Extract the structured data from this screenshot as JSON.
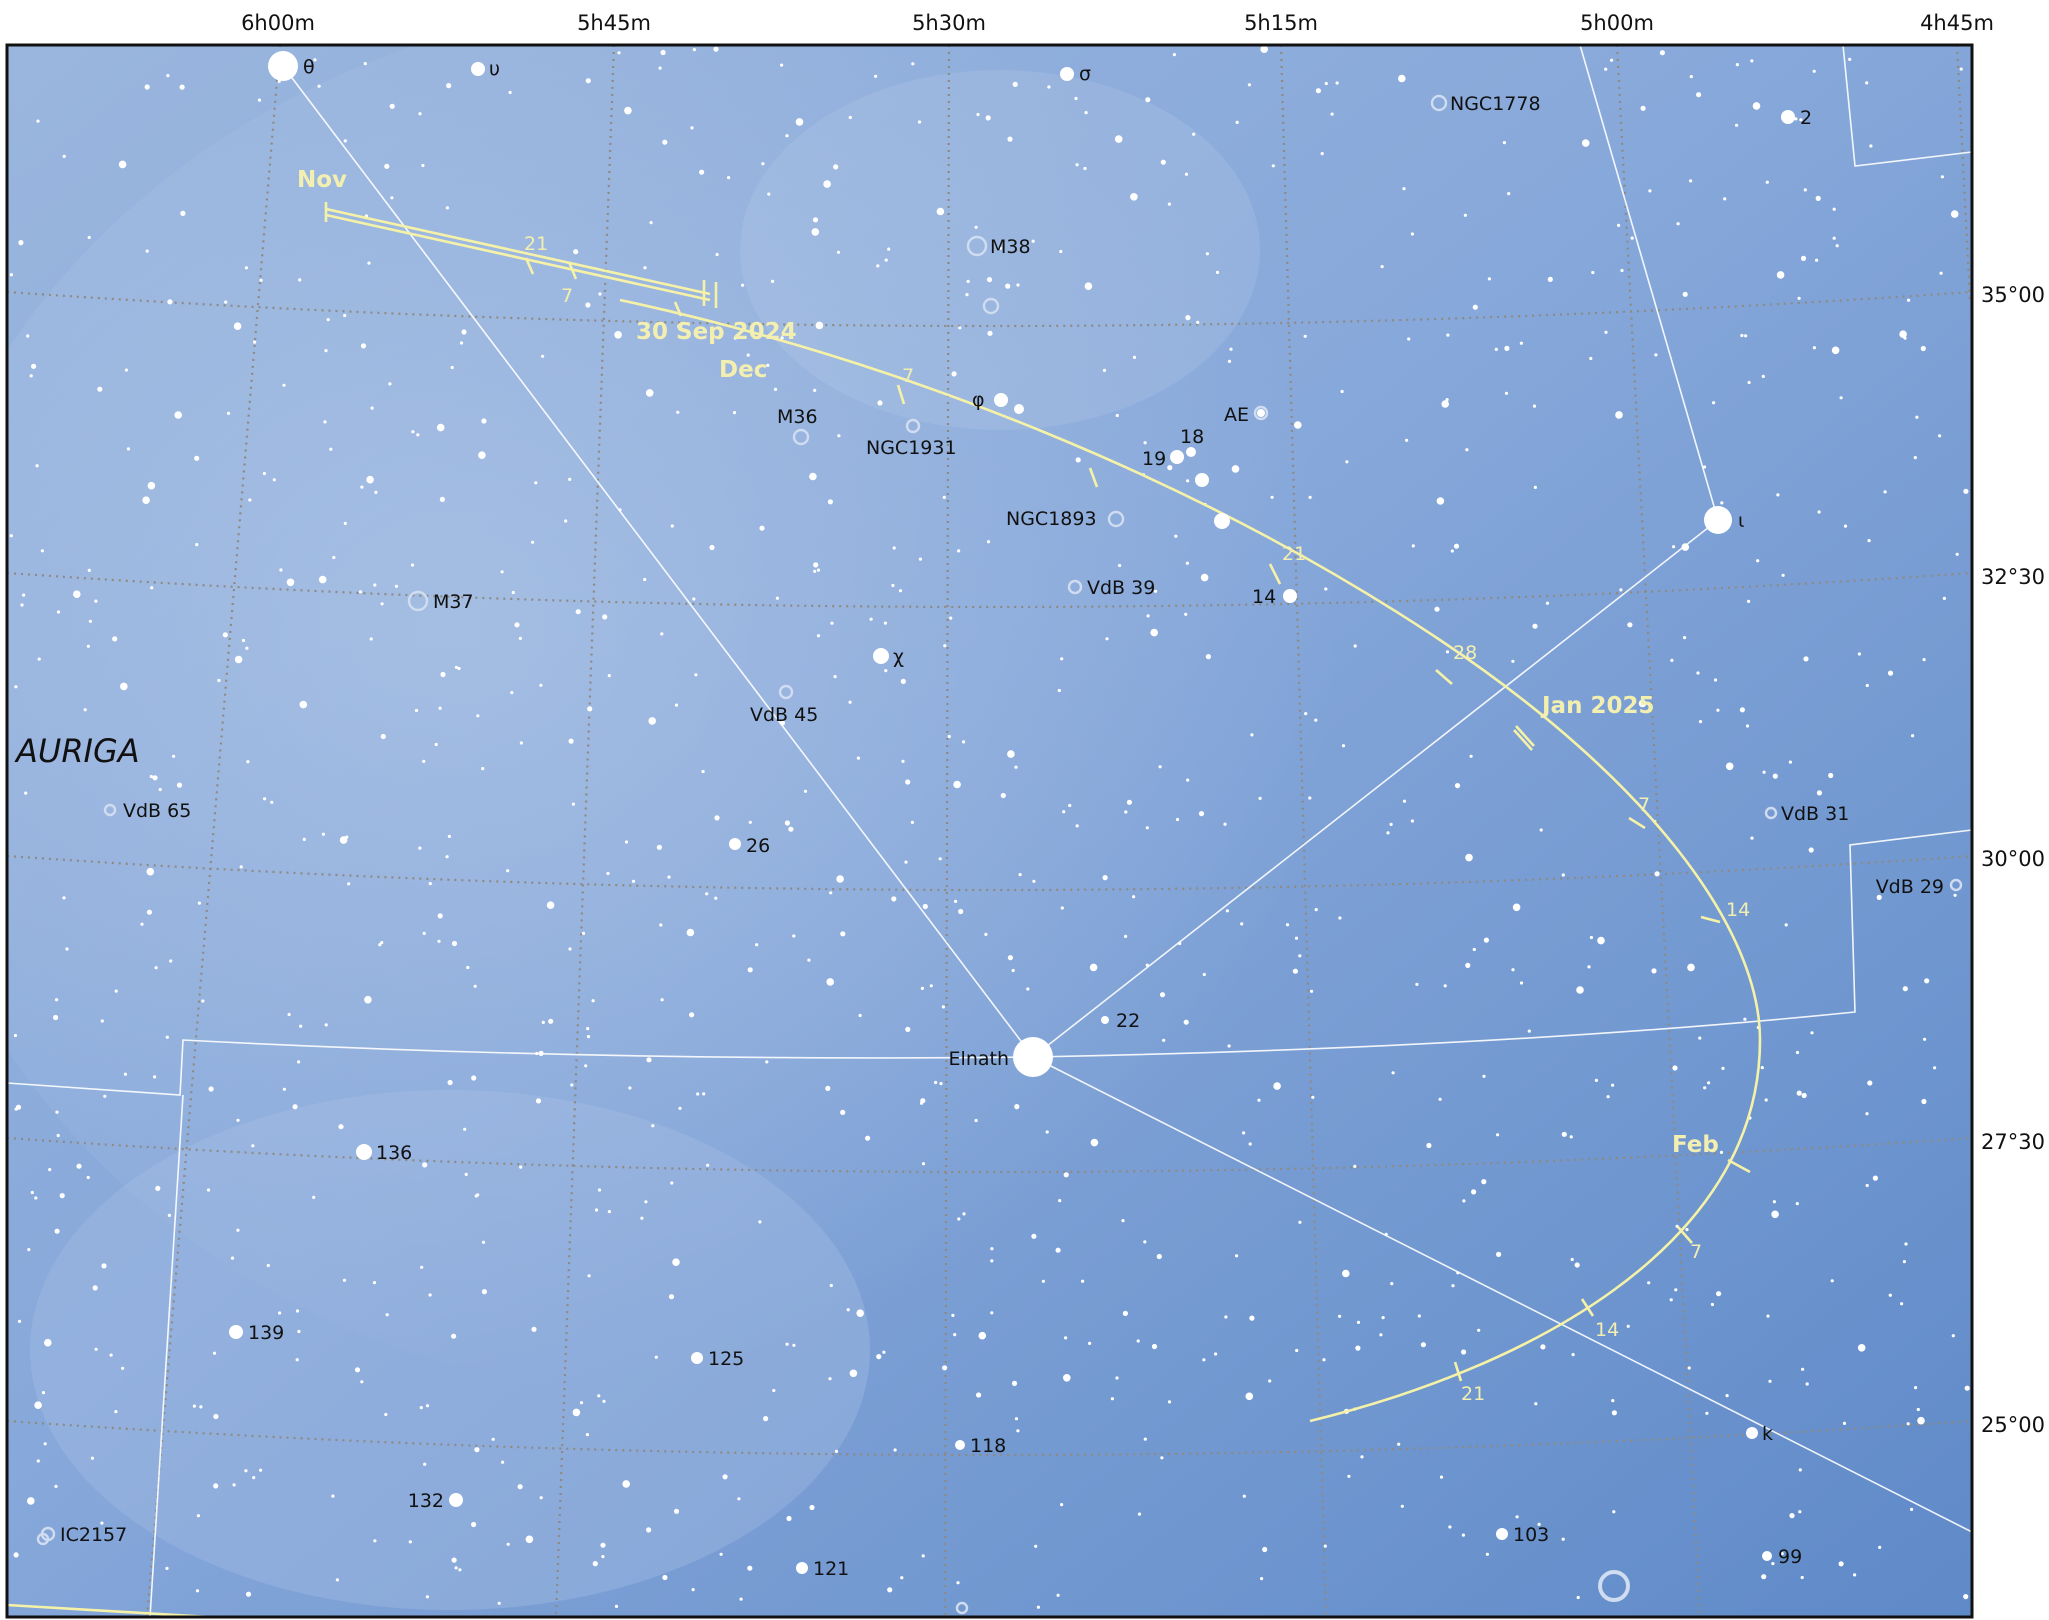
{
  "chart": {
    "constellation": "AURIGA",
    "colors": {
      "sky_light": "#9db8df",
      "sky_mid": "#7fa3d6",
      "sky_dark": "#5f8ac9",
      "grid": "#8e8a82",
      "lines": "#ffffff",
      "comet_path": "#f5f2a8",
      "frame": "#111111"
    },
    "ra_labels": [
      "6h00m",
      "5h45m",
      "5h30m",
      "5h15m",
      "5h00m",
      "4h45m"
    ],
    "dec_labels": [
      "35°00",
      "32°30",
      "30°00",
      "27°30",
      "25°00"
    ],
    "stars_named": [
      {
        "label": "θ",
        "icon": "bright-star-icon"
      },
      {
        "label": "υ",
        "icon": "star-icon"
      },
      {
        "label": "σ",
        "icon": "star-icon"
      },
      {
        "label": "2",
        "icon": "star-icon"
      },
      {
        "label": "φ",
        "icon": "star-icon"
      },
      {
        "label": "18",
        "icon": "star-icon"
      },
      {
        "label": "19",
        "icon": "star-icon"
      },
      {
        "label": "AE",
        "icon": "star-icon"
      },
      {
        "label": "ι",
        "icon": "bright-star-icon"
      },
      {
        "label": "14",
        "icon": "star-icon"
      },
      {
        "label": "χ",
        "icon": "star-icon"
      },
      {
        "label": "26",
        "icon": "star-icon"
      },
      {
        "label": "Elnath",
        "icon": "bright-star-icon"
      },
      {
        "label": "22",
        "icon": "star-icon"
      },
      {
        "label": "136",
        "icon": "star-icon"
      },
      {
        "label": "139",
        "icon": "star-icon"
      },
      {
        "label": "125",
        "icon": "star-icon"
      },
      {
        "label": "118",
        "icon": "star-icon"
      },
      {
        "label": "132",
        "icon": "star-icon"
      },
      {
        "label": "121",
        "icon": "star-icon"
      },
      {
        "label": "103",
        "icon": "star-icon"
      },
      {
        "label": "99",
        "icon": "star-icon"
      },
      {
        "label": "k",
        "icon": "star-icon"
      }
    ],
    "deep_sky": [
      "NGC1778",
      "M38",
      "M36",
      "NGC1931",
      "NGC1893",
      "VdB 39",
      "M37",
      "VdB 45",
      "VdB 65",
      "VdB 31",
      "VdB 29",
      "IC2157"
    ],
    "comet_path_labels": {
      "start": "30 Sep 2024",
      "months": [
        "Nov",
        "Dec",
        "Jan 2025",
        "Feb"
      ],
      "ticks": [
        "21",
        "7",
        "7",
        "21",
        "28",
        "7",
        "14",
        "7",
        "14",
        "21"
      ]
    }
  }
}
